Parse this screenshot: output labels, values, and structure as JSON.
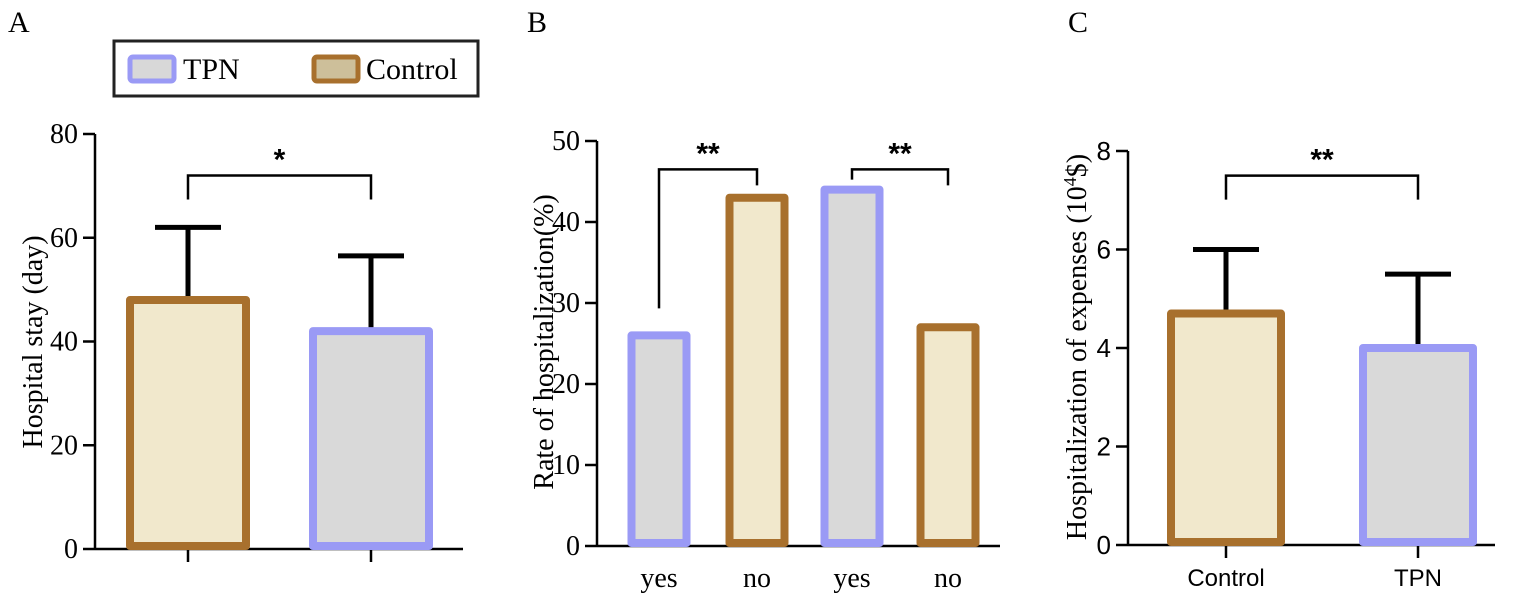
{
  "figure": {
    "legend": {
      "items": [
        {
          "label": "TPN",
          "fill": "#d8d8d8",
          "stroke": "#9a9af5"
        },
        {
          "label": "Control",
          "fill": "#cdbf9a",
          "stroke": "#a8702d"
        }
      ],
      "frame_color": "#222222"
    },
    "colors": {
      "tpn_fill": "#d9d9d9",
      "tpn_stroke": "#9a9af5",
      "control_fill": "#f1e8cc",
      "control_stroke": "#a8702d",
      "axis": "#000000"
    }
  },
  "chart_data": [
    {
      "panel_label": "A",
      "type": "bar",
      "title": "",
      "xlabel": "",
      "ylabel": "Hospital stay (day)",
      "ylim": [
        0,
        80
      ],
      "yticks": [
        "0",
        "20",
        "40",
        "60",
        "80"
      ],
      "categories": [
        "",
        ""
      ],
      "bars": [
        {
          "group": "Control",
          "value": 48,
          "error": 14
        },
        {
          "group": "TPN",
          "value": 42,
          "error": 14.5
        }
      ],
      "significance": [
        {
          "from": 0,
          "to": 1,
          "label": "*",
          "y": 72
        }
      ]
    },
    {
      "panel_label": "B",
      "type": "bar",
      "title": "",
      "xlabel": "",
      "ylabel": "Rate of hospitalization(%)",
      "ylim": [
        0,
        50
      ],
      "yticks": [
        "0",
        "10",
        "20",
        "30",
        "40",
        "50"
      ],
      "categories": [
        "yes",
        "no",
        "yes",
        "no"
      ],
      "bars": [
        {
          "group": "TPN",
          "value": 26
        },
        {
          "group": "Control",
          "value": 43
        },
        {
          "group": "TPN",
          "value": 44
        },
        {
          "group": "Control",
          "value": 27
        }
      ],
      "significance": [
        {
          "from": 0,
          "to": 1,
          "label": "**",
          "y": 46.5
        },
        {
          "from": 2,
          "to": 3,
          "label": "**",
          "y": 46.5
        }
      ]
    },
    {
      "panel_label": "C",
      "type": "bar",
      "title": "",
      "xlabel": "",
      "ylabel_main": "Hospitalization of expenses (10",
      "ylabel_sup": "4",
      "ylabel_end": "$)",
      "ylim": [
        0,
        8
      ],
      "yticks": [
        "0",
        "2",
        "4",
        "6",
        "8"
      ],
      "categories": [
        "Control",
        "TPN"
      ],
      "bars": [
        {
          "group": "Control",
          "value": 4.7,
          "error": 1.3
        },
        {
          "group": "TPN",
          "value": 4.0,
          "error": 1.5
        }
      ],
      "significance": [
        {
          "from": 0,
          "to": 1,
          "label": "**",
          "y": 7.5
        }
      ]
    }
  ]
}
